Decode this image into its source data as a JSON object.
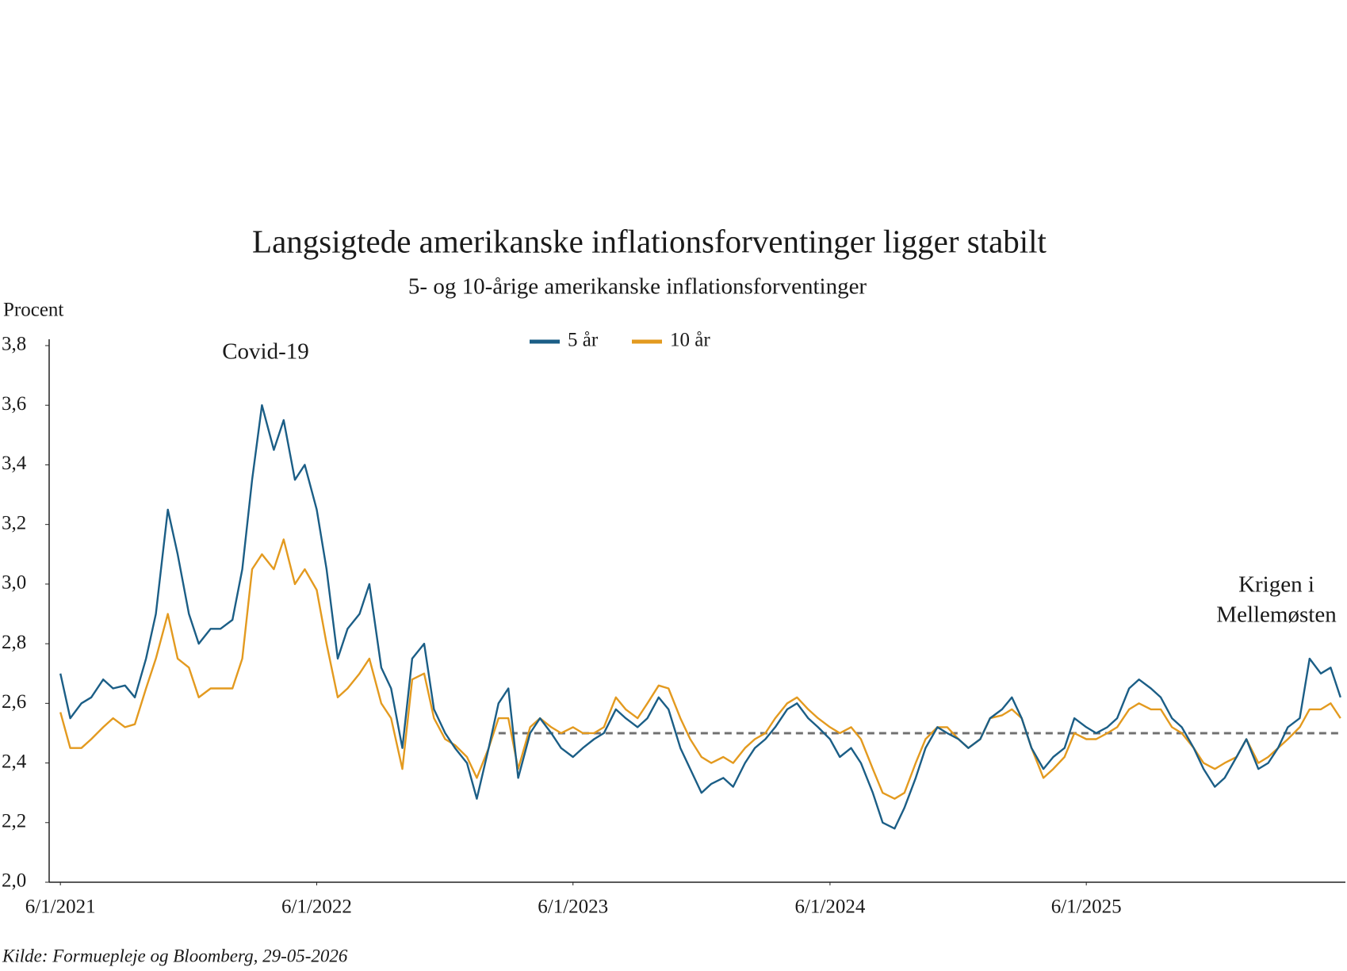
{
  "chart_data": {
    "type": "line",
    "title": "Langsigtede amerikanske inflationsforventinger ligger stabilt",
    "subtitle": "5- og 10-årige amerikanske inflationsforventinger",
    "y_label": "Procent",
    "source": "Kilde: Formuepleje og Bloomberg, 29-05-2026",
    "annotations": [
      {
        "lines": [
          "Covid-19"
        ]
      },
      {
        "lines": [
          "Krigen i",
          "Mellemøsten"
        ]
      }
    ],
    "xlim": [
      "2021-05-16",
      "2026-06-05"
    ],
    "xticks": [
      {
        "value": "2021-06-01",
        "label": "6/1/2021"
      },
      {
        "value": "2022-06-01",
        "label": "6/1/2022"
      },
      {
        "value": "2023-06-01",
        "label": "6/1/2023"
      },
      {
        "value": "2024-06-01",
        "label": "6/1/2024"
      },
      {
        "value": "2025-06-01",
        "label": "6/1/2025"
      }
    ],
    "ylim": [
      2.0,
      3.8
    ],
    "yticks": [
      {
        "value": 2.0,
        "label": "2,0"
      },
      {
        "value": 2.2,
        "label": "2,2"
      },
      {
        "value": 2.4,
        "label": "2,4"
      },
      {
        "value": 2.6,
        "label": "2,6"
      },
      {
        "value": 2.8,
        "label": "2,8"
      },
      {
        "value": 3.0,
        "label": "3,0"
      },
      {
        "value": 3.2,
        "label": "3,2"
      },
      {
        "value": 3.4,
        "label": "3,4"
      },
      {
        "value": 3.6,
        "label": "3,6"
      },
      {
        "value": 3.8,
        "label": "3,8"
      }
    ],
    "reference_line": {
      "y": 2.5,
      "x_start": "2023-02-15",
      "color": "#707070"
    },
    "x": [
      "2021-06-01",
      "2021-06-15",
      "2021-07-01",
      "2021-07-15",
      "2021-08-01",
      "2021-08-15",
      "2021-09-01",
      "2021-09-15",
      "2021-10-01",
      "2021-10-15",
      "2021-11-01",
      "2021-11-15",
      "2021-12-01",
      "2021-12-15",
      "2022-01-01",
      "2022-01-15",
      "2022-02-01",
      "2022-02-15",
      "2022-03-01",
      "2022-03-15",
      "2022-04-01",
      "2022-04-15",
      "2022-05-01",
      "2022-05-15",
      "2022-06-01",
      "2022-06-15",
      "2022-07-01",
      "2022-07-15",
      "2022-08-01",
      "2022-08-15",
      "2022-09-01",
      "2022-09-15",
      "2022-10-01",
      "2022-10-15",
      "2022-11-01",
      "2022-11-15",
      "2022-12-01",
      "2022-12-15",
      "2023-01-01",
      "2023-01-15",
      "2023-02-01",
      "2023-02-15",
      "2023-03-01",
      "2023-03-15",
      "2023-04-01",
      "2023-04-15",
      "2023-05-01",
      "2023-05-15",
      "2023-06-01",
      "2023-06-15",
      "2023-07-01",
      "2023-07-15",
      "2023-08-01",
      "2023-08-15",
      "2023-09-01",
      "2023-09-15",
      "2023-10-01",
      "2023-10-15",
      "2023-11-01",
      "2023-11-15",
      "2023-12-01",
      "2023-12-15",
      "2024-01-01",
      "2024-01-15",
      "2024-02-01",
      "2024-02-15",
      "2024-03-01",
      "2024-03-15",
      "2024-04-01",
      "2024-04-15",
      "2024-05-01",
      "2024-05-15",
      "2024-06-01",
      "2024-06-15",
      "2024-07-01",
      "2024-07-15",
      "2024-08-01",
      "2024-08-15",
      "2024-09-01",
      "2024-09-15",
      "2024-10-01",
      "2024-10-15",
      "2024-11-01",
      "2024-11-15",
      "2024-12-01",
      "2024-12-15",
      "2025-01-01",
      "2025-01-15",
      "2025-02-01",
      "2025-02-15",
      "2025-03-01",
      "2025-03-15",
      "2025-04-01",
      "2025-04-15",
      "2025-05-01",
      "2025-05-15",
      "2025-06-01",
      "2025-06-15",
      "2025-07-01",
      "2025-07-15",
      "2025-08-01",
      "2025-08-15",
      "2025-09-01",
      "2025-09-15",
      "2025-10-01",
      "2025-10-15",
      "2025-11-01",
      "2025-11-15",
      "2025-12-01",
      "2025-12-15",
      "2026-01-01",
      "2026-01-15",
      "2026-02-01",
      "2026-02-15",
      "2026-03-01",
      "2026-03-15",
      "2026-04-01",
      "2026-04-15",
      "2026-05-01",
      "2026-05-15",
      "2026-05-29"
    ],
    "series": [
      {
        "name": "5 år",
        "color": "#1b5e86",
        "values": [
          2.7,
          2.55,
          2.6,
          2.62,
          2.68,
          2.65,
          2.66,
          2.62,
          2.75,
          2.9,
          3.25,
          3.1,
          2.9,
          2.8,
          2.85,
          2.85,
          2.88,
          3.05,
          3.35,
          3.6,
          3.45,
          3.55,
          3.35,
          3.4,
          3.25,
          3.05,
          2.75,
          2.85,
          2.9,
          3.0,
          2.72,
          2.65,
          2.45,
          2.75,
          2.8,
          2.58,
          2.5,
          2.45,
          2.4,
          2.28,
          2.45,
          2.6,
          2.65,
          2.35,
          2.5,
          2.55,
          2.5,
          2.45,
          2.42,
          2.45,
          2.48,
          2.5,
          2.58,
          2.55,
          2.52,
          2.55,
          2.62,
          2.58,
          2.45,
          2.38,
          2.3,
          2.33,
          2.35,
          2.32,
          2.4,
          2.45,
          2.48,
          2.52,
          2.58,
          2.6,
          2.55,
          2.52,
          2.48,
          2.42,
          2.45,
          2.4,
          2.3,
          2.2,
          2.18,
          2.25,
          2.35,
          2.45,
          2.52,
          2.5,
          2.48,
          2.45,
          2.48,
          2.55,
          2.58,
          2.62,
          2.55,
          2.45,
          2.38,
          2.42,
          2.45,
          2.55,
          2.52,
          2.5,
          2.52,
          2.55,
          2.65,
          2.68,
          2.65,
          2.62,
          2.55,
          2.52,
          2.45,
          2.38,
          2.32,
          2.35,
          2.42,
          2.48,
          2.38,
          2.4,
          2.45,
          2.52,
          2.55,
          2.75,
          2.7,
          2.72,
          2.62
        ]
      },
      {
        "name": "10 år",
        "color": "#e39a1f",
        "values": [
          2.57,
          2.45,
          2.45,
          2.48,
          2.52,
          2.55,
          2.52,
          2.53,
          2.65,
          2.75,
          2.9,
          2.75,
          2.72,
          2.62,
          2.65,
          2.65,
          2.65,
          2.75,
          3.05,
          3.1,
          3.05,
          3.15,
          3.0,
          3.05,
          2.98,
          2.8,
          2.62,
          2.65,
          2.7,
          2.75,
          2.6,
          2.55,
          2.38,
          2.68,
          2.7,
          2.55,
          2.48,
          2.46,
          2.42,
          2.35,
          2.45,
          2.55,
          2.55,
          2.38,
          2.52,
          2.55,
          2.52,
          2.5,
          2.52,
          2.5,
          2.5,
          2.52,
          2.62,
          2.58,
          2.55,
          2.6,
          2.66,
          2.65,
          2.55,
          2.48,
          2.42,
          2.4,
          2.42,
          2.4,
          2.45,
          2.48,
          2.5,
          2.55,
          2.6,
          2.62,
          2.58,
          2.55,
          2.52,
          2.5,
          2.52,
          2.48,
          2.38,
          2.3,
          2.28,
          2.3,
          2.4,
          2.48,
          2.52,
          2.52,
          2.48,
          2.45,
          2.48,
          2.55,
          2.56,
          2.58,
          2.55,
          2.45,
          2.35,
          2.38,
          2.42,
          2.5,
          2.48,
          2.48,
          2.5,
          2.52,
          2.58,
          2.6,
          2.58,
          2.58,
          2.52,
          2.5,
          2.45,
          2.4,
          2.38,
          2.4,
          2.42,
          2.48,
          2.4,
          2.42,
          2.45,
          2.48,
          2.52,
          2.58,
          2.58,
          2.6,
          2.55
        ]
      }
    ]
  }
}
